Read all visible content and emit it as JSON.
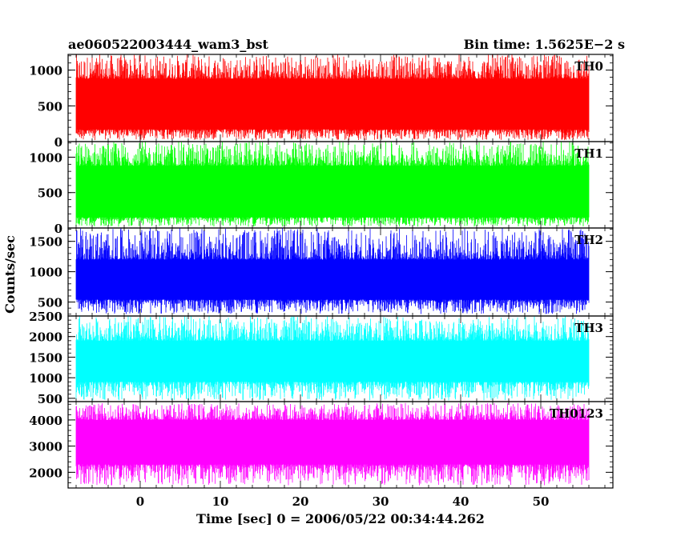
{
  "header": {
    "left_title": "ae060522003444_wam3_bst",
    "right_title": "Bin time: 1.5625E−2 s"
  },
  "chart_data": {
    "type": "line",
    "xlabel": "Time [sec] 0 = 2006/05/22 00:34:44.262",
    "ylabel": "Counts/sec",
    "xlim": [
      -9,
      59
    ],
    "x_ticks": [
      0,
      10,
      20,
      30,
      40,
      50
    ],
    "x_tick_labels": [
      "0",
      "10",
      "20",
      "30",
      "40",
      "50"
    ],
    "data_range": [
      -8,
      56
    ],
    "bin_time": 0.015625,
    "panels": [
      {
        "name": "TH0",
        "color": "#ff0000",
        "ylim": [
          0,
          1220
        ],
        "yticks": [
          0,
          500,
          1000
        ],
        "ytick_labels": [
          "0",
          "500",
          "1000"
        ],
        "mean": 560,
        "band_low": 170,
        "band_high": 880,
        "spike_low": 20,
        "spike_high": 1220
      },
      {
        "name": "TH1",
        "color": "#00ff00",
        "ylim": [
          0,
          1220
        ],
        "yticks": [
          0,
          500,
          1000
        ],
        "ytick_labels": [
          "0",
          "500",
          "1000"
        ],
        "mean": 530,
        "band_low": 150,
        "band_high": 880,
        "spike_low": 20,
        "spike_high": 1220
      },
      {
        "name": "TH2",
        "color": "#0000ff",
        "ylim": [
          270,
          1720
        ],
        "yticks": [
          500,
          1000,
          1500
        ],
        "ytick_labels": [
          "500",
          "1000",
          "1500"
        ],
        "mean": 900,
        "band_low": 540,
        "band_high": 1200,
        "spike_low": 300,
        "spike_high": 1720
      },
      {
        "name": "TH3",
        "color": "#00ffff",
        "ylim": [
          420,
          2500
        ],
        "yticks": [
          500,
          1000,
          1500,
          2000,
          2500
        ],
        "ytick_labels": [
          "500",
          "1000",
          "1500",
          "2000",
          "2500"
        ],
        "mean": 1450,
        "band_low": 900,
        "band_high": 1900,
        "spike_low": 450,
        "spike_high": 2500
      },
      {
        "name": "TH0123",
        "color": "#ff00ff",
        "ylim": [
          1400,
          4700
        ],
        "yticks": [
          2000,
          3000,
          4000
        ],
        "ytick_labels": [
          "2000",
          "3000",
          "4000"
        ],
        "mean": 3100,
        "band_low": 2300,
        "band_high": 4000,
        "spike_low": 1500,
        "spike_high": 4650
      }
    ]
  }
}
